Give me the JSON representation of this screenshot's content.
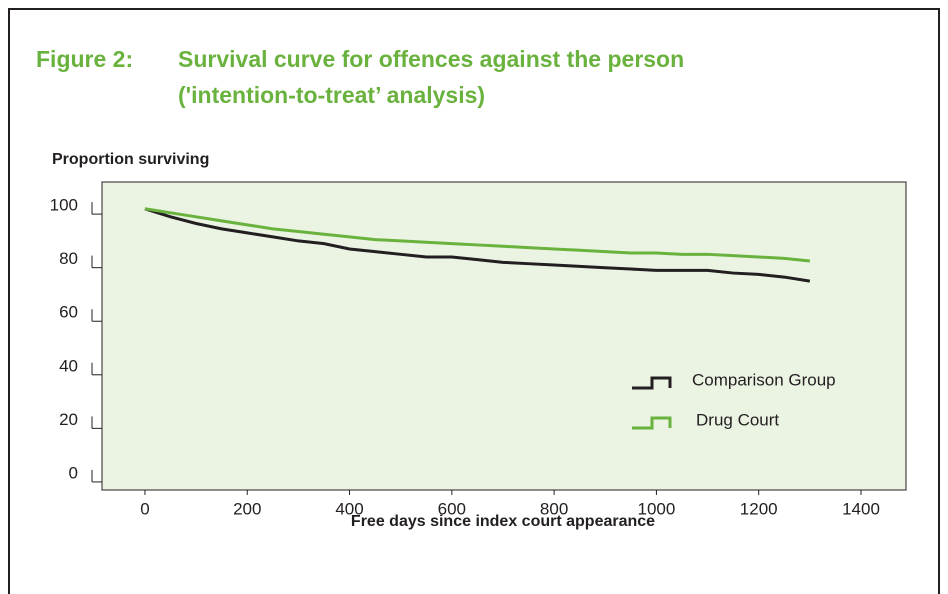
{
  "chart_data": {
    "type": "line",
    "figure_label": "Figure 2:",
    "title_lines": [
      "Survival curve for offences against the person",
      "('intention-to-treat’ analysis)"
    ],
    "y_label": "Proportion surviving",
    "x_label": "Free days since index court appearance",
    "x": [
      0,
      50,
      100,
      150,
      200,
      250,
      300,
      350,
      400,
      450,
      500,
      550,
      600,
      650,
      700,
      750,
      800,
      850,
      900,
      950,
      1000,
      1050,
      1100,
      1150,
      1200,
      1250,
      1300
    ],
    "series": [
      {
        "name": "Comparison Group",
        "color": "#231f20",
        "values": [
          99,
          96,
          93.5,
          91.5,
          90,
          88.5,
          87,
          86,
          84,
          83,
          82,
          81,
          81,
          80,
          79,
          78.5,
          78,
          77.5,
          77,
          76.5,
          76,
          76,
          76,
          75,
          74.5,
          73.5,
          72
        ]
      },
      {
        "name": "Drug Court",
        "color": "#6ab23e",
        "values": [
          99,
          97.5,
          96,
          94.5,
          93,
          91.5,
          90.5,
          89.5,
          88.5,
          87.5,
          87,
          86.5,
          86,
          85.5,
          85,
          84.5,
          84,
          83.5,
          83,
          82.5,
          82.5,
          82,
          82,
          81.5,
          81,
          80.5,
          79.5
        ]
      }
    ],
    "xlim": [
      -84,
      1488
    ],
    "xticks": [
      0,
      200,
      400,
      600,
      800,
      1000,
      1200,
      1400
    ],
    "ylim": [
      -6,
      109
    ],
    "yticks": [
      0,
      20,
      40,
      60,
      80,
      100
    ],
    "grid": false,
    "legend": "lower right",
    "plot_background": "#ebf3e3"
  }
}
